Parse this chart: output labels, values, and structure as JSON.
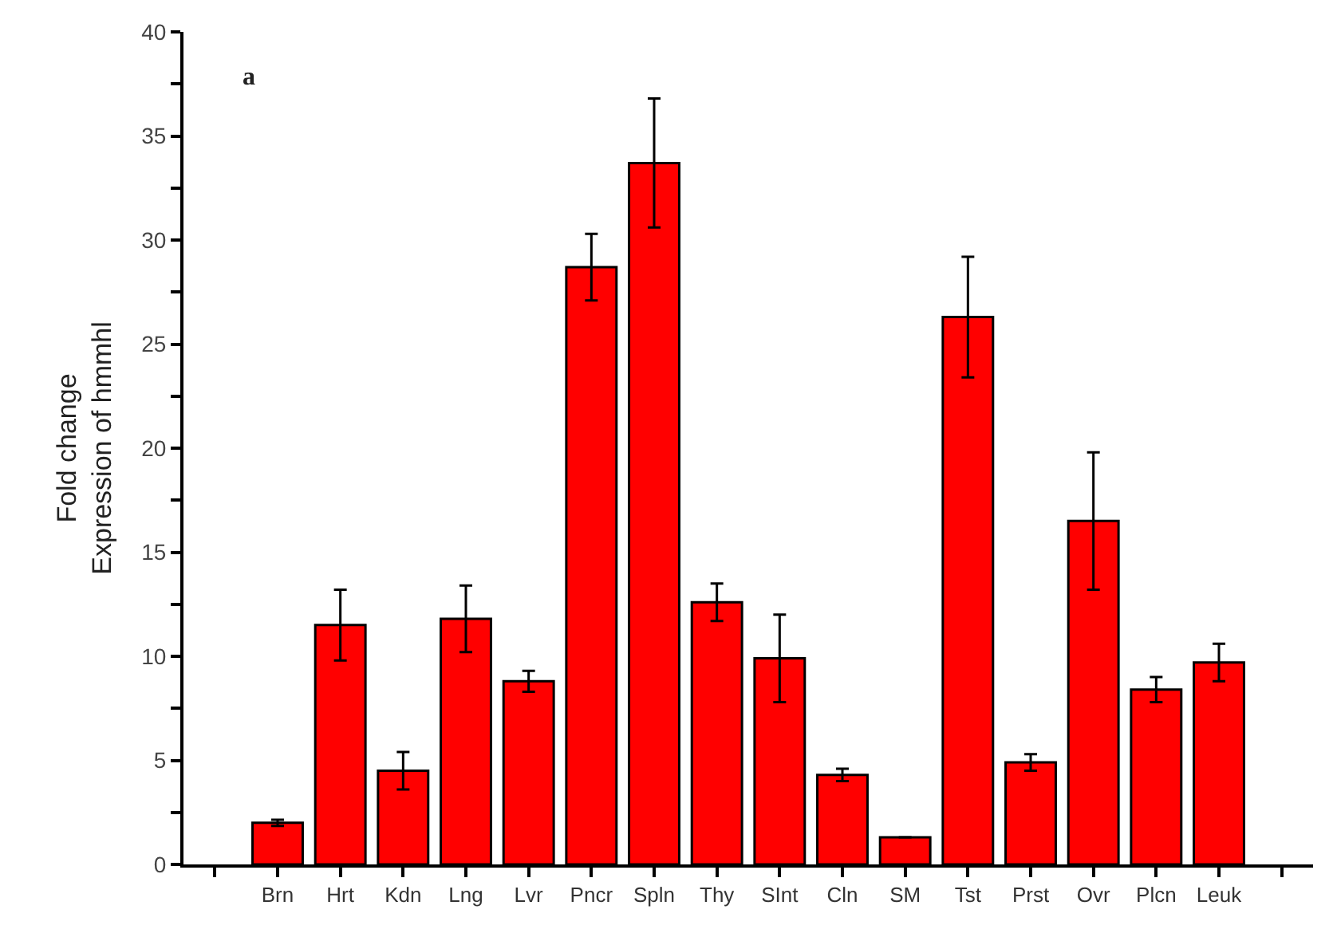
{
  "chart_data": {
    "type": "bar",
    "ylabel": "Fold change\nExpression of hmmhl",
    "annotations": [
      "a"
    ],
    "categories": [
      null,
      "Brn",
      "Hrt",
      "Kdn",
      "Lng",
      "Lvr",
      "Pncr",
      "Spln",
      "Thy",
      "SInt",
      "Cln",
      "SM",
      "Tst",
      "Prst",
      "Ovr",
      "Plcn",
      "Leuk",
      null
    ],
    "values": [
      null,
      2.0,
      11.5,
      4.5,
      11.8,
      8.8,
      28.7,
      33.7,
      12.6,
      9.9,
      4.3,
      1.3,
      26.3,
      4.9,
      16.5,
      8.4,
      9.7,
      null
    ],
    "errors": [
      null,
      0.15,
      1.7,
      0.9,
      1.6,
      0.5,
      1.6,
      3.1,
      0.9,
      2.1,
      0.3,
      null,
      2.9,
      0.4,
      3.3,
      0.6,
      0.9,
      null
    ],
    "color": "#ff0000",
    "ylim": [
      0,
      40
    ],
    "yticks": [
      0,
      {
        "value": 2.5,
        "label": null
      },
      5,
      {
        "value": 7.5,
        "label": null
      },
      10,
      {
        "value": 12.5,
        "label": null
      },
      15,
      {
        "value": 17.5,
        "label": null
      },
      20,
      {
        "value": 22.5,
        "label": null
      },
      25,
      {
        "value": 27.5,
        "label": null
      },
      30,
      {
        "value": 32.5,
        "label": null
      },
      35,
      {
        "value": 37.5,
        "label": null
      },
      40
    ],
    "grid": false,
    "legend": false
  }
}
